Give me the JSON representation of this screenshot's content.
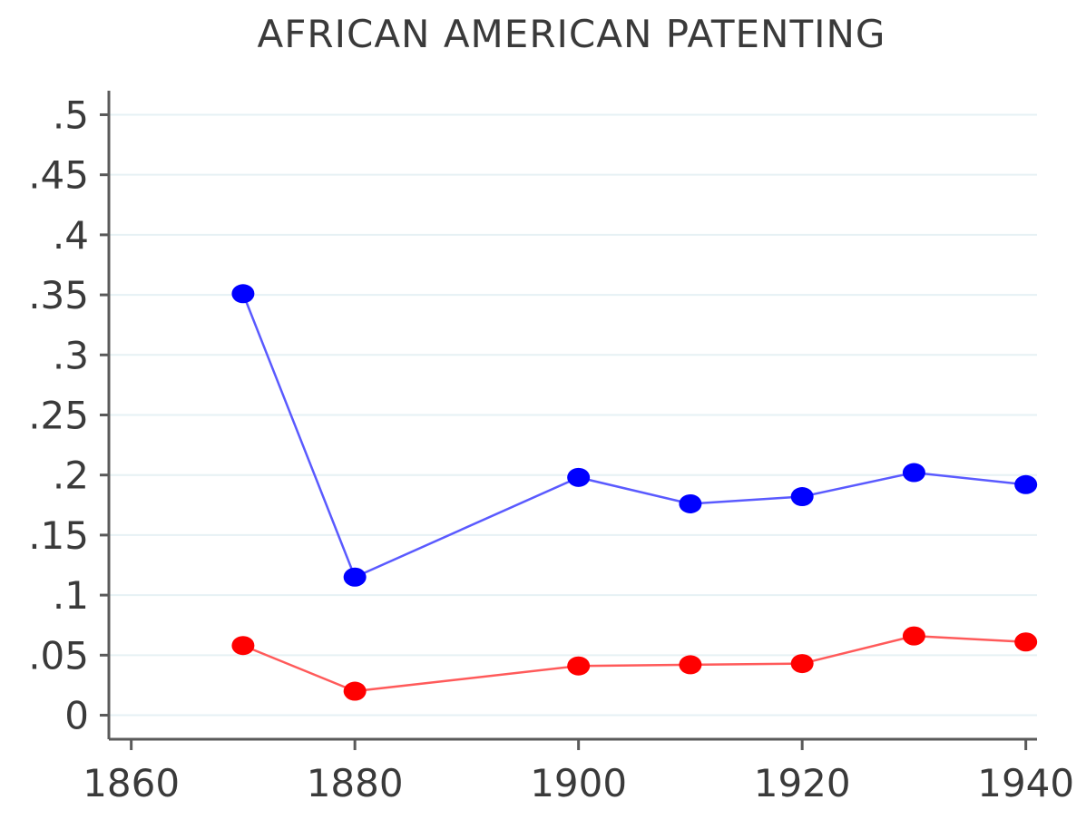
{
  "chart_data": {
    "type": "line",
    "title": "AFRICAN AMERICAN PATENTING",
    "xlabel": "",
    "ylabel": "",
    "xlim": [
      1858,
      1941
    ],
    "ylim": [
      -0.02,
      0.52
    ],
    "x_ticks": [
      1860,
      1880,
      1900,
      1920,
      1940
    ],
    "x_tick_labels": [
      "1860",
      "1880",
      "1900",
      "1920",
      "1940"
    ],
    "y_ticks": [
      0,
      0.05,
      0.1,
      0.15,
      0.2,
      0.25,
      0.3,
      0.35,
      0.4,
      0.45,
      0.5
    ],
    "y_tick_labels": [
      "0",
      ".05",
      ".1",
      ".15",
      ".2",
      ".25",
      ".3",
      ".35",
      ".4",
      ".45",
      ".5"
    ],
    "grid": true,
    "legend": "none",
    "series": [
      {
        "color": "#0000ff",
        "line_color": "#5a5aff",
        "x": [
          1870,
          1880,
          1900,
          1910,
          1920,
          1930,
          1940
        ],
        "y": [
          0.351,
          0.115,
          0.198,
          0.176,
          0.182,
          0.202,
          0.192
        ]
      },
      {
        "color": "#ff0000",
        "line_color": "#ff5a5a",
        "x": [
          1870,
          1880,
          1900,
          1910,
          1920,
          1930,
          1940
        ],
        "y": [
          0.058,
          0.02,
          0.041,
          0.042,
          0.043,
          0.066,
          0.061
        ]
      }
    ],
    "colors": {
      "grid": "#e6f1f4",
      "axis": "#5a5a5a",
      "text": "#3a3a3a"
    }
  }
}
